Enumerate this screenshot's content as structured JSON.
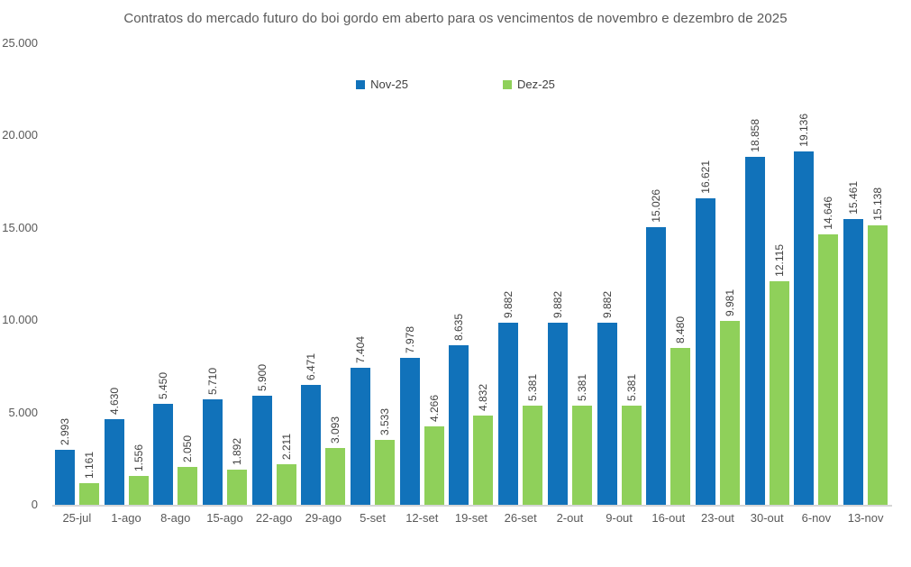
{
  "title": "Contratos do mercado futuro do boi gordo em aberto para os vencimentos de novembro e dezembro de 2025",
  "legend": {
    "items": [
      {
        "label": "Nov-25",
        "color": "#1172BA"
      },
      {
        "label": "Dez-25",
        "color": "#8FD05A"
      }
    ]
  },
  "colors": {
    "series_nov": "#1172BA",
    "series_dez": "#8FD05A",
    "axis_line": "#D6D6D6",
    "title_text": "#595959",
    "axis_text": "#595959",
    "data_label_text": "#404040",
    "background": "#FFFFFF"
  },
  "chart_data": {
    "type": "bar",
    "title": "Contratos do mercado futuro do boi gordo em aberto para os vencimentos de novembro e dezembro de 2025",
    "categories": [
      "25-jul",
      "1-ago",
      "8-ago",
      "15-ago",
      "22-ago",
      "29-ago",
      "5-set",
      "12-set",
      "19-set",
      "26-set",
      "2-out",
      "9-out",
      "16-out",
      "23-out",
      "30-out",
      "6-nov",
      "13-nov"
    ],
    "series": [
      {
        "name": "Nov-25",
        "color": "#1172BA",
        "values": [
          2993,
          4630,
          5450,
          5710,
          5900,
          6471,
          7404,
          7978,
          8635,
          9882,
          9882,
          9882,
          15026,
          16621,
          18858,
          19136,
          15461
        ],
        "labels": [
          "2.993",
          "4.630",
          "5.450",
          "5.710",
          "5.900",
          "6.471",
          "7.404",
          "7.978",
          "8.635",
          "9.882",
          "9.882",
          "9.882",
          "15.026",
          "16.621",
          "18.858",
          "19.136",
          "15.461"
        ]
      },
      {
        "name": "Dez-25",
        "color": "#8FD05A",
        "values": [
          1161,
          1556,
          2050,
          1892,
          2211,
          3093,
          3533,
          4266,
          4832,
          5381,
          5381,
          5381,
          8480,
          9981,
          12115,
          14646,
          15138
        ],
        "labels": [
          "1.161",
          "1.556",
          "2.050",
          "1.892",
          "2.211",
          "3.093",
          "3.533",
          "4.266",
          "4.832",
          "5.381",
          "5.381",
          "5.381",
          "8.480",
          "9.981",
          "12.115",
          "14.646",
          "15.138"
        ]
      }
    ],
    "xlabel": "",
    "ylabel": "",
    "ylim": [
      0,
      25000
    ],
    "yticks": [
      0,
      5000,
      10000,
      15000,
      20000,
      25000
    ],
    "ytick_labels": [
      "0",
      "5.000",
      "10.000",
      "15.000",
      "20.000",
      "25.000"
    ],
    "grid": false,
    "legend_position": "top-center",
    "data_labels": "rotated 90° vertical labels above each bar, thousands separated with dot"
  }
}
